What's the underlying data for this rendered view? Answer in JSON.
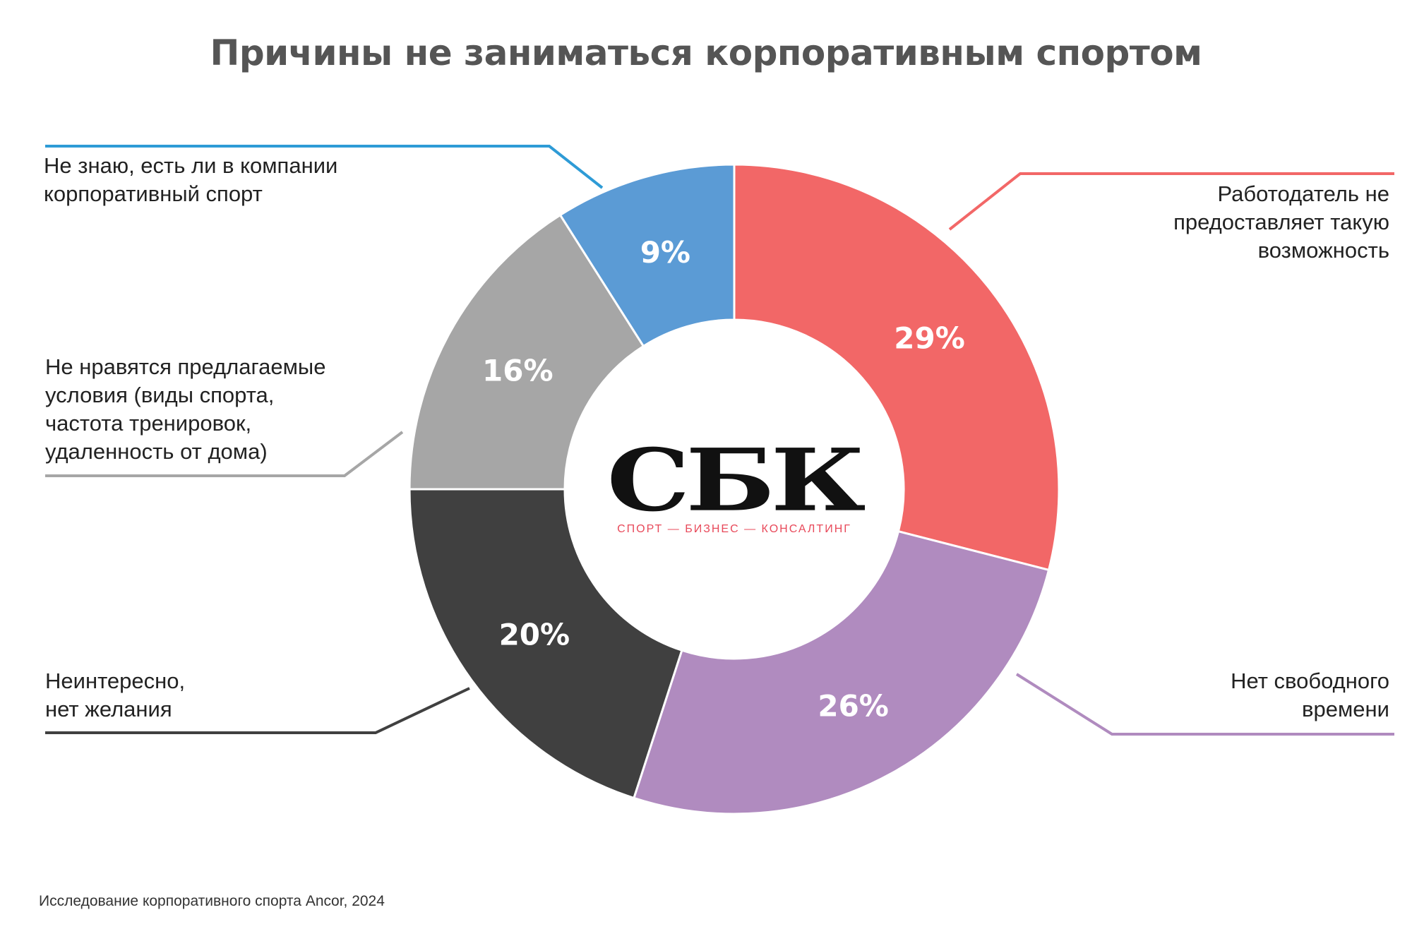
{
  "title": "Причины не заниматься корпоративным спортом",
  "source": "Исследование корпоративного спорта Ancor, 2024",
  "logo": {
    "mark": "СБК",
    "tagline": "СПОРТ — БИЗНЕС — КОНСАЛТИНГ"
  },
  "chart_data": {
    "type": "pie",
    "variant": "donut",
    "title": "Причины не заниматься корпоративным спортом",
    "start": "12 o'clock, clockwise",
    "slices": [
      {
        "label": "Работодатель не\nпредоставляет такую\nвозможность",
        "value": 29,
        "display": "29%",
        "color": "#f26767",
        "side": "right"
      },
      {
        "label": "Нет свободного\nвремени",
        "value": 26,
        "display": "26%",
        "color": "#b08bbf",
        "side": "right"
      },
      {
        "label": "Неинтересно,\nнет желания",
        "value": 20,
        "display": "20%",
        "color": "#404040",
        "side": "left"
      },
      {
        "label": "Не нравятся предлагаемые\nусловия (виды спорта,\nчастота тренировок,\nудаленность от дома)",
        "value": 16,
        "display": "16%",
        "color": "#a6a6a6",
        "side": "left"
      },
      {
        "label": "Не знаю, есть ли в компании\nкорпоративный спорт",
        "value": 9,
        "display": "9%",
        "color": "#5b9bd5",
        "side": "left"
      }
    ],
    "leader_colors": [
      "#f26767",
      "#b08bbf",
      "#404040",
      "#a6a6a6",
      "#2e9bd6"
    ]
  }
}
